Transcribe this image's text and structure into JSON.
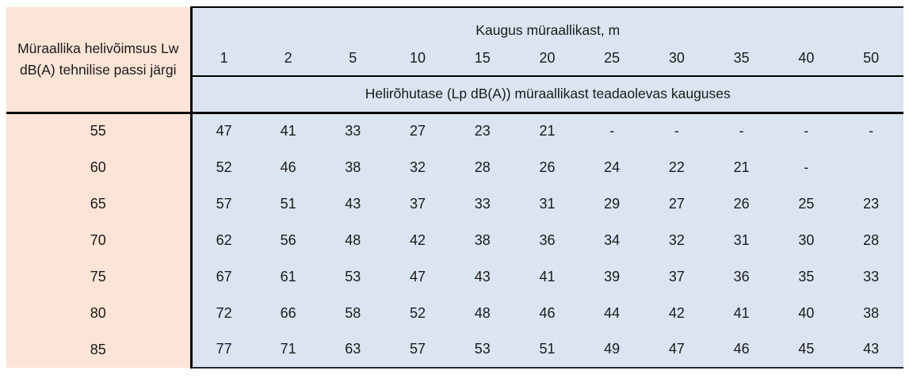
{
  "table": {
    "corner_header": "Müraallika helivõimsus Lw dB(A) tehnilise passi järgi",
    "distance_header": "Kaugus müraallikast, m",
    "subheader": "Helirõhutase (Lp dB(A)) müraallikast teadaolevas kauguses",
    "distance_columns": [
      "1",
      "2",
      "5",
      "10",
      "15",
      "20",
      "25",
      "30",
      "35",
      "40",
      "50"
    ],
    "rows": [
      {
        "label": "55",
        "values": [
          "47",
          "41",
          "33",
          "27",
          "23",
          "21",
          "-",
          "-",
          "-",
          "-",
          "-"
        ]
      },
      {
        "label": "60",
        "values": [
          "52",
          "46",
          "38",
          "32",
          "28",
          "26",
          "24",
          "22",
          "21",
          "-",
          ""
        ]
      },
      {
        "label": "65",
        "values": [
          "57",
          "51",
          "43",
          "37",
          "33",
          "31",
          "29",
          "27",
          "26",
          "25",
          "23"
        ]
      },
      {
        "label": "70",
        "values": [
          "62",
          "56",
          "48",
          "42",
          "38",
          "36",
          "34",
          "32",
          "31",
          "30",
          "28"
        ]
      },
      {
        "label": "75",
        "values": [
          "67",
          "61",
          "53",
          "47",
          "43",
          "41",
          "39",
          "37",
          "36",
          "35",
          "33"
        ]
      },
      {
        "label": "80",
        "values": [
          "72",
          "66",
          "58",
          "52",
          "48",
          "46",
          "44",
          "42",
          "41",
          "40",
          "38"
        ]
      },
      {
        "label": "85",
        "values": [
          "77",
          "71",
          "63",
          "57",
          "53",
          "51",
          "49",
          "47",
          "46",
          "45",
          "43"
        ]
      }
    ],
    "colors": {
      "row_header_bg": "#fce4d6",
      "data_bg": "#dbe5f1",
      "border": "#000000",
      "text": "#1a1a1a",
      "page_bg": "#ffffff"
    }
  }
}
